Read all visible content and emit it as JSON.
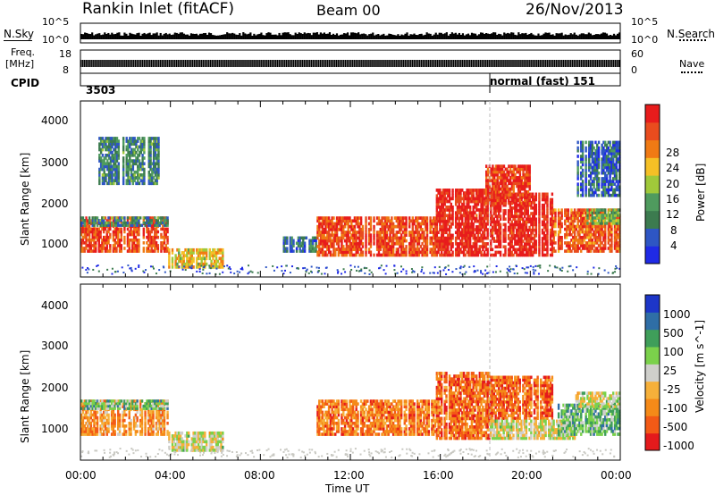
{
  "header": {
    "station": "Rankin Inlet (fitACF)",
    "beam": "Beam 00",
    "date": "26/Nov/2013"
  },
  "colors": {
    "scale": [
      "#1f2ae6",
      "#2e56c4",
      "#3c7b4f",
      "#4f9b5e",
      "#a0c93a",
      "#f5c026",
      "#f07a14",
      "#e94c1e",
      "#e81c1c"
    ],
    "vel_scale": [
      "#e41a1c",
      "#f35a16",
      "#f58a18",
      "#f6b03a",
      "#cfcfcb",
      "#7bd14b",
      "#3f9e5a",
      "#2f6ea6",
      "#1d36c8"
    ],
    "ground": "#c9c9c3"
  },
  "top_panels": {
    "nsky_label": "N.Sky",
    "nsky_ticks": [
      "10^5",
      "10^0"
    ],
    "nsearch_label": "N.Search",
    "nsearch_ticks": [
      "10^5",
      "10^0"
    ],
    "freq_label_1": "Freq.",
    "freq_label_2": "[MHz]",
    "freq_ticks": [
      "18",
      "8"
    ],
    "nave_label": "Nave",
    "nave_ticks": [
      "60",
      "0"
    ],
    "cpid_label": "CPID",
    "cpid_value": "3503",
    "mode_label": "normal (fast) 151"
  },
  "chart_data": [
    {
      "type": "heatmap",
      "title": "",
      "xlabel": "",
      "ylabel": "Slant Range [km]",
      "y_ticks": [
        "4000",
        "3000",
        "2000",
        "1000"
      ],
      "ylim": [
        180,
        4600
      ],
      "xlim_hours": [
        0,
        24
      ],
      "colorbar": {
        "label": "Power [dB]",
        "ticks": [
          "28",
          "24",
          "20",
          "16",
          "12",
          "8",
          "4"
        ],
        "range": [
          0,
          30
        ]
      },
      "blocks": [
        {
          "t0": 0.0,
          "t1": 3.9,
          "r0": 800,
          "r1": 1700,
          "level": 0.85
        },
        {
          "t0": 0.0,
          "t1": 3.9,
          "r0": 1450,
          "r1": 1700,
          "level": 0.3
        },
        {
          "t0": 3.9,
          "t1": 6.5,
          "r0": 400,
          "r1": 900,
          "level": 0.6
        },
        {
          "t0": 9.0,
          "t1": 10.5,
          "r0": 800,
          "r1": 1200,
          "level": 0.25
        },
        {
          "t0": 10.5,
          "t1": 15.8,
          "r0": 700,
          "r1": 1700,
          "level": 0.85
        },
        {
          "t0": 15.8,
          "t1": 18.2,
          "r0": 700,
          "r1": 2400,
          "level": 0.95
        },
        {
          "t0": 18.2,
          "t1": 21.0,
          "r0": 700,
          "r1": 2300,
          "level": 0.95
        },
        {
          "t0": 21.0,
          "t1": 24.0,
          "r0": 800,
          "r1": 1900,
          "level": 0.8
        },
        {
          "t0": 22.5,
          "t1": 24.0,
          "r0": 1500,
          "r1": 1900,
          "level": 0.4
        },
        {
          "t0": 0.8,
          "t1": 3.5,
          "r0": 2500,
          "r1": 3700,
          "level": 0.3
        },
        {
          "t0": 18.0,
          "t1": 20.0,
          "r0": 2000,
          "r1": 3000,
          "level": 0.9
        },
        {
          "t0": 22.0,
          "t1": 24.0,
          "r0": 2200,
          "r1": 3600,
          "level": 0.2
        }
      ]
    },
    {
      "type": "heatmap",
      "title": "",
      "xlabel": "Time UT",
      "ylabel": "Slant Range [km]",
      "y_ticks": [
        "4000",
        "3000",
        "2000",
        "1000"
      ],
      "ylim": [
        180,
        4600
      ],
      "xlim_hours": [
        0,
        24
      ],
      "x_ticks": [
        "00:00",
        "04:00",
        "08:00",
        "12:00",
        "16:00",
        "20:00",
        "00:00"
      ],
      "colorbar": {
        "label": "Velocity [m s^-1]",
        "ticks": [
          "1000",
          "500",
          "100",
          "25",
          "-25",
          "-100",
          "-500",
          "-1000"
        ],
        "range": [
          -1000,
          1000
        ]
      },
      "blocks": [
        {
          "t0": 0.0,
          "t1": 3.9,
          "r0": 800,
          "r1": 1700,
          "level": 0.3
        },
        {
          "t0": 0.0,
          "t1": 3.9,
          "r0": 1450,
          "r1": 1700,
          "level": 0.65
        },
        {
          "t0": 3.9,
          "t1": 6.5,
          "r0": 400,
          "r1": 900,
          "level": 0.5
        },
        {
          "t0": 10.5,
          "t1": 15.8,
          "r0": 800,
          "r1": 1700,
          "level": 0.25
        },
        {
          "t0": 15.8,
          "t1": 18.2,
          "r0": 700,
          "r1": 2400,
          "level": 0.2
        },
        {
          "t0": 18.2,
          "t1": 21.0,
          "r0": 1200,
          "r1": 2300,
          "level": 0.2
        },
        {
          "t0": 18.2,
          "t1": 22.0,
          "r0": 700,
          "r1": 1200,
          "level": 0.5
        },
        {
          "t0": 21.0,
          "t1": 24.0,
          "r0": 800,
          "r1": 1600,
          "level": 0.65
        },
        {
          "t0": 22.0,
          "t1": 24.0,
          "r0": 1500,
          "r1": 1900,
          "level": 0.5
        }
      ]
    }
  ]
}
